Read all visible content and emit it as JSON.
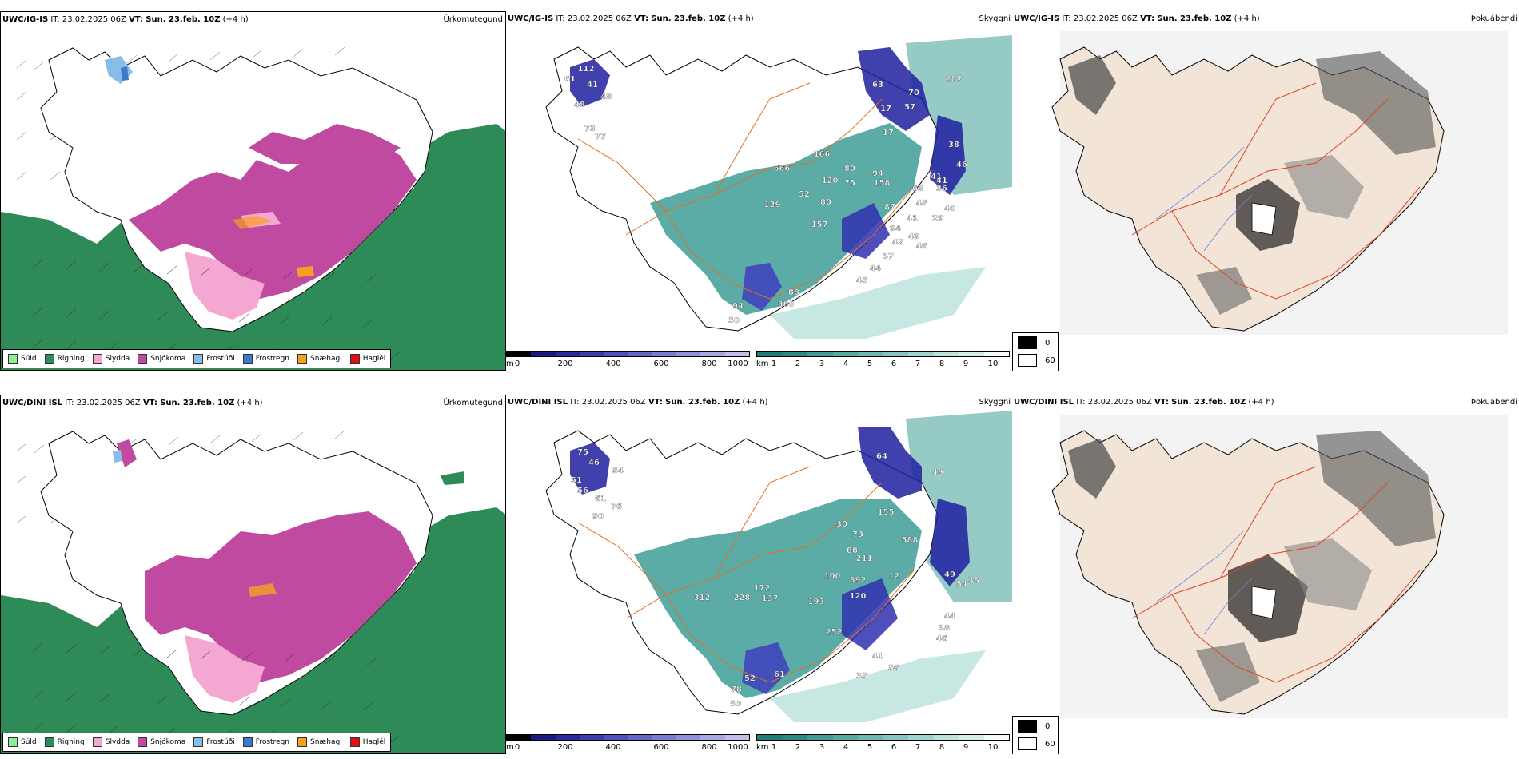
{
  "rows": [
    {
      "model": "UWC/IG-IS",
      "it_label": "IT:",
      "it_value": "23.02.2025 06Z",
      "vt_label": "VT:",
      "vt_value": "Sun. 23.feb. 10Z",
      "lead": "(+4 h)",
      "peak_labels": [
        "112",
        "61",
        "41",
        "48",
        "48",
        "73",
        "77",
        "63",
        "70",
        "287",
        "17",
        "57",
        "17",
        "38",
        "46",
        "166",
        "666",
        "120",
        "80",
        "75",
        "158",
        "94",
        "63",
        "41",
        "36",
        "41",
        "129",
        "52",
        "80",
        "157",
        "87",
        "48",
        "40",
        "29",
        "94",
        "41",
        "49",
        "42",
        "46",
        "37",
        "44",
        "45",
        "380",
        "88",
        "94",
        "50"
      ]
    },
    {
      "model": "UWC/DINI ISL",
      "it_label": "IT:",
      "it_value": "23.02.2025 06Z",
      "vt_label": "VT:",
      "vt_value": "Sun. 23.feb. 10Z",
      "lead": "(+4 h)",
      "peak_labels": [
        "75",
        "46",
        "54",
        "51",
        "56",
        "61",
        "76",
        "90",
        "64",
        "49",
        "155",
        "30",
        "73",
        "588",
        "88",
        "211",
        "100",
        "892",
        "49",
        "120",
        "193",
        "12",
        "38",
        "54",
        "312",
        "228",
        "172",
        "137",
        "44",
        "38",
        "46",
        "252",
        "41",
        "56",
        "35",
        "61",
        "52",
        "78",
        "50"
      ]
    }
  ],
  "panel_titles": {
    "precip": "Úrkomutegund",
    "cloud": "Skyggni",
    "fog": "Þokuábendi"
  },
  "precip_legend": [
    {
      "label": "Súld",
      "color": "#90ee90"
    },
    {
      "label": "Rigning",
      "color": "#2e8b57"
    },
    {
      "label": "Slydda",
      "color": "#f4a7d0"
    },
    {
      "label": "Snjókoma",
      "color": "#c04aa0"
    },
    {
      "label": "Frostúði",
      "color": "#87bde8"
    },
    {
      "label": "Frostregn",
      "color": "#3a7cc9"
    },
    {
      "label": "Snæhagl",
      "color": "#f5a020"
    },
    {
      "label": "Haglél",
      "color": "#e01010"
    }
  ],
  "cloudbase_scale": {
    "unit": "m",
    "ticks": [
      "0",
      "200",
      "400",
      "600",
      "800",
      "1000"
    ]
  },
  "visibility_scale": {
    "unit": "km",
    "ticks": [
      "1",
      "2",
      "3",
      "4",
      "5",
      "6",
      "7",
      "8",
      "9",
      "10"
    ]
  },
  "fog_scale": {
    "values": [
      "0",
      "60"
    ]
  },
  "colors": {
    "rain": "#2e8b57",
    "snow": "#c04aa0",
    "sleet": "#f4a7d0",
    "land": "#f2e4d6",
    "road": "#e07020",
    "teal": "#3e9e96",
    "navy": "#2020a0"
  }
}
